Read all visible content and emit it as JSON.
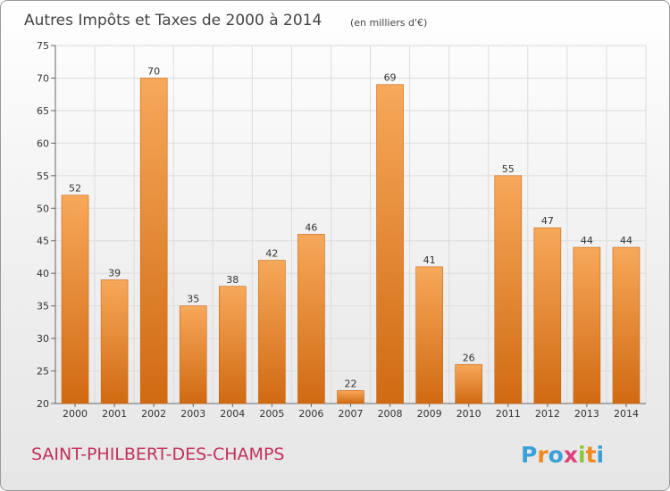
{
  "chart_data": {
    "type": "bar",
    "title": "Autres Impôts et Taxes de 2000 à 2014",
    "subtitle": "(en milliers d'€)",
    "categories": [
      "2000",
      "2001",
      "2002",
      "2003",
      "2004",
      "2005",
      "2006",
      "2007",
      "2008",
      "2009",
      "2010",
      "2011",
      "2012",
      "2013",
      "2014"
    ],
    "values": [
      52,
      39,
      70,
      35,
      38,
      42,
      46,
      22,
      69,
      41,
      26,
      55,
      47,
      44,
      44
    ],
    "ylim": [
      20,
      75
    ],
    "yticks": [
      20,
      25,
      30,
      35,
      40,
      45,
      50,
      55,
      60,
      65,
      70,
      75
    ],
    "xlabel": "",
    "ylabel": "",
    "grid": true,
    "bar_color": "#f0963a"
  },
  "location": "SAINT-PHILBERT-DES-CHAMPS",
  "brand": {
    "letters": [
      "P",
      "r",
      "o",
      "x",
      "i",
      "t",
      "i"
    ],
    "colors": [
      "#3aa0d8",
      "#f08a1c",
      "#3aa0d8",
      "#e0407a",
      "#8cc63f",
      "#f08a1c",
      "#3aa0d8"
    ]
  }
}
